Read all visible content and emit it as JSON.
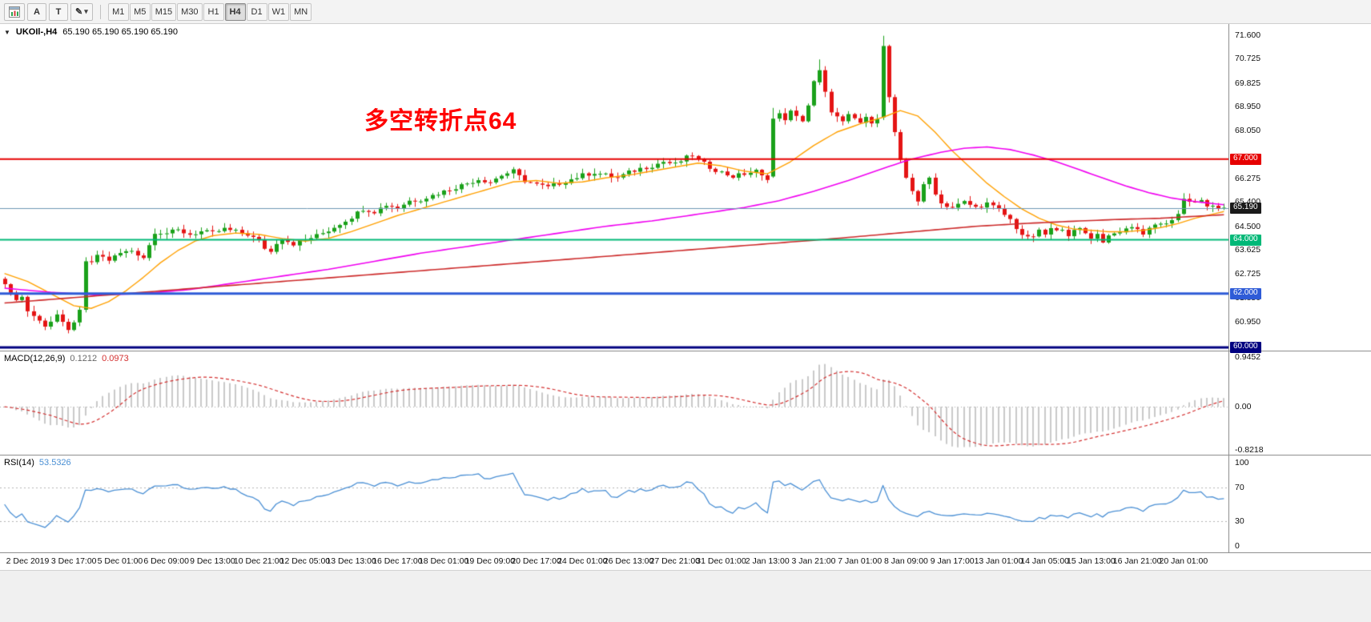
{
  "toolbar": {
    "tools": {
      "cursor_label": "A",
      "text_label": "T",
      "draw_glyph": "✎",
      "chevron_glyph": "▾"
    },
    "timeframes": [
      "M1",
      "M5",
      "M15",
      "M30",
      "H1",
      "H4",
      "D1",
      "W1",
      "MN"
    ],
    "active_timeframe": "H4"
  },
  "chart": {
    "title": "UKOIl-,H4",
    "quote": "65.190 65.190 65.190 65.190",
    "icons": {
      "symbol_dropdown": "▼"
    },
    "annotation": {
      "text": "多空转折点64",
      "color": "#ff0000"
    }
  },
  "indicators": {
    "macd": {
      "label": "MACD(12,26,9)",
      "value_main": "0.1212",
      "value_signal": "0.0973",
      "range": [
        -0.8218,
        0.9452
      ],
      "scale_ticks": [
        {
          "label": "0.9452",
          "v": 0.9452
        },
        {
          "label": "0.00",
          "v": 0
        },
        {
          "label": "-0.8218",
          "v": -0.8218
        }
      ]
    },
    "rsi": {
      "label": "RSI(14)",
      "value": "53.5326",
      "period": 14,
      "levels": [
        70,
        30
      ],
      "scale_ticks": [
        {
          "label": "100",
          "v": 100
        },
        {
          "label": "70",
          "v": 70
        },
        {
          "label": "30",
          "v": 30
        },
        {
          "label": "0",
          "v": 0
        }
      ]
    }
  },
  "chart_data": {
    "type": "candlestick",
    "symbol": "UKOIl-",
    "timeframe": "H4",
    "last_price": 65.19,
    "num_candles": 212,
    "price_range": {
      "min": 60.0,
      "max": 71.6
    },
    "colors": {
      "up": "#1aa11a",
      "down": "#e41414",
      "macd_hist": "#c9c9c9",
      "macd_signal": "#d32f2f",
      "rsi_line": "#4a8fd4",
      "price_line": "#6e99b4",
      "level_dots": "#b5b5b5"
    },
    "y_ticks": [
      "71.600",
      "70.725",
      "69.825",
      "68.950",
      "68.050",
      "66.275",
      "65.400",
      "64.500",
      "63.625",
      "62.725",
      "61.850",
      "60.950"
    ],
    "badges": [
      {
        "label": "67.000",
        "price": 67.0,
        "color": "#e60000"
      },
      {
        "label": "65.190",
        "price": 65.19,
        "color": "#1a1a1a"
      },
      {
        "label": "64.000",
        "price": 64.0,
        "color": "#00b877"
      },
      {
        "label": "62.000",
        "price": 62.0,
        "color": "#2e5bd7"
      },
      {
        "label": "60.000",
        "price": 60.0,
        "color": "#000080"
      }
    ],
    "h_lines": [
      {
        "price": 67.0,
        "color": "#e60000",
        "width": 2
      },
      {
        "price": 64.0,
        "color": "#00b877",
        "width": 2
      },
      {
        "price": 62.0,
        "color": "#2e5bd7",
        "width": 3
      },
      {
        "price": 60.0,
        "color": "#000080",
        "width": 3
      }
    ],
    "x_labels": [
      "2 Dec 2019",
      "3 Dec 17:00",
      "5 Dec 01:00",
      "6 Dec 09:00",
      "9 Dec 13:00",
      "10 Dec 21:00",
      "12 Dec 05:00",
      "13 Dec 13:00",
      "16 Dec 17:00",
      "18 Dec 01:00",
      "19 Dec 09:00",
      "20 Dec 17:00",
      "24 Dec 01:00",
      "26 Dec 13:00",
      "27 Dec 21:00",
      "31 Dec 01:00",
      "2 Jan 13:00",
      "3 Jan 21:00",
      "7 Jan 01:00",
      "8 Jan 09:00",
      "9 Jan 17:00",
      "13 Jan 01:00",
      "14 Jan 05:00",
      "15 Jan 13:00",
      "16 Jan 21:00",
      "20 Jan 01:00"
    ],
    "x_label_start": 4,
    "x_label_step": 8,
    "price_anchors": [
      [
        0,
        62.35
      ],
      [
        1,
        62.1
      ],
      [
        2,
        61.75
      ],
      [
        3,
        61.9
      ],
      [
        4,
        61.35
      ],
      [
        5,
        61.15
      ],
      [
        6,
        61.05
      ],
      [
        7,
        60.8
      ],
      [
        8,
        60.95
      ],
      [
        9,
        61.15
      ],
      [
        10,
        60.9
      ],
      [
        11,
        60.7
      ],
      [
        12,
        60.85
      ],
      [
        13,
        61.35
      ],
      [
        14,
        63.2
      ],
      [
        15,
        63.1
      ],
      [
        16,
        63.45
      ],
      [
        18,
        63.25
      ],
      [
        20,
        63.5
      ],
      [
        22,
        63.6
      ],
      [
        24,
        63.35
      ],
      [
        25,
        63.8
      ],
      [
        26,
        64.3
      ],
      [
        28,
        64.25
      ],
      [
        30,
        64.35
      ],
      [
        32,
        64.2
      ],
      [
        34,
        64.3
      ],
      [
        36,
        64.25
      ],
      [
        38,
        64.4
      ],
      [
        40,
        64.3
      ],
      [
        42,
        64.2
      ],
      [
        44,
        63.95
      ],
      [
        45,
        63.7
      ],
      [
        46,
        63.55
      ],
      [
        47,
        63.9
      ],
      [
        48,
        64.05
      ],
      [
        50,
        63.85
      ],
      [
        52,
        64.0
      ],
      [
        54,
        64.15
      ],
      [
        56,
        64.35
      ],
      [
        58,
        64.6
      ],
      [
        60,
        64.85
      ],
      [
        62,
        65.15
      ],
      [
        64,
        65.05
      ],
      [
        66,
        65.3
      ],
      [
        68,
        65.2
      ],
      [
        70,
        65.45
      ],
      [
        72,
        65.5
      ],
      [
        74,
        65.65
      ],
      [
        76,
        65.8
      ],
      [
        78,
        65.95
      ],
      [
        80,
        66.1
      ],
      [
        82,
        66.25
      ],
      [
        84,
        66.15
      ],
      [
        86,
        66.4
      ],
      [
        88,
        66.55
      ],
      [
        89,
        66.35
      ],
      [
        90,
        66.2
      ],
      [
        92,
        66.05
      ],
      [
        94,
        65.95
      ],
      [
        96,
        66.1
      ],
      [
        98,
        66.25
      ],
      [
        100,
        66.4
      ],
      [
        102,
        66.5
      ],
      [
        104,
        66.4
      ],
      [
        106,
        66.3
      ],
      [
        108,
        66.5
      ],
      [
        110,
        66.65
      ],
      [
        112,
        66.75
      ],
      [
        114,
        66.9
      ],
      [
        116,
        66.8
      ],
      [
        118,
        67.05
      ],
      [
        119,
        67.15
      ],
      [
        120,
        66.95
      ],
      [
        122,
        66.7
      ],
      [
        124,
        66.5
      ],
      [
        126,
        66.35
      ],
      [
        128,
        66.45
      ],
      [
        130,
        66.55
      ],
      [
        131,
        66.35
      ],
      [
        132,
        66.3
      ],
      [
        133,
        68.5
      ],
      [
        134,
        68.65
      ],
      [
        135,
        68.5
      ],
      [
        136,
        68.75
      ],
      [
        137,
        68.55
      ],
      [
        138,
        68.45
      ],
      [
        139,
        69.0
      ],
      [
        140,
        69.85
      ],
      [
        141,
        70.3
      ],
      [
        142,
        69.5
      ],
      [
        143,
        68.8
      ],
      [
        144,
        68.55
      ],
      [
        145,
        68.35
      ],
      [
        146,
        68.6
      ],
      [
        147,
        68.5
      ],
      [
        148,
        68.35
      ],
      [
        149,
        68.5
      ],
      [
        150,
        68.4
      ],
      [
        151,
        68.55
      ],
      [
        152,
        71.2
      ],
      [
        153,
        69.3
      ],
      [
        154,
        68.0
      ],
      [
        155,
        66.9
      ],
      [
        156,
        66.3
      ],
      [
        157,
        65.85
      ],
      [
        158,
        65.45
      ],
      [
        159,
        66.0
      ],
      [
        160,
        66.3
      ],
      [
        161,
        65.75
      ],
      [
        162,
        65.35
      ],
      [
        164,
        65.2
      ],
      [
        166,
        65.4
      ],
      [
        168,
        65.2
      ],
      [
        170,
        65.35
      ],
      [
        172,
        65.1
      ],
      [
        174,
        64.75
      ],
      [
        175,
        64.45
      ],
      [
        176,
        64.2
      ],
      [
        177,
        64.05
      ],
      [
        178,
        64.15
      ],
      [
        179,
        64.3
      ],
      [
        180,
        64.2
      ],
      [
        181,
        64.4
      ],
      [
        182,
        64.3
      ],
      [
        183,
        64.45
      ],
      [
        184,
        64.2
      ],
      [
        185,
        64.3
      ],
      [
        186,
        64.4
      ],
      [
        187,
        64.25
      ],
      [
        188,
        64.1
      ],
      [
        189,
        64.2
      ],
      [
        190,
        63.95
      ],
      [
        191,
        64.15
      ],
      [
        192,
        64.3
      ],
      [
        193,
        64.2
      ],
      [
        194,
        64.4
      ],
      [
        195,
        64.5
      ],
      [
        196,
        64.35
      ],
      [
        197,
        64.25
      ],
      [
        198,
        64.45
      ],
      [
        199,
        64.55
      ],
      [
        200,
        64.65
      ],
      [
        201,
        64.6
      ],
      [
        202,
        64.75
      ],
      [
        203,
        64.9
      ],
      [
        204,
        65.5
      ],
      [
        205,
        65.45
      ],
      [
        206,
        65.35
      ],
      [
        207,
        65.4
      ],
      [
        208,
        65.25
      ],
      [
        209,
        65.3
      ],
      [
        210,
        65.2
      ],
      [
        211,
        65.19
      ]
    ],
    "special_candles": [
      {
        "i": 0,
        "o": 62.55,
        "h": 62.62,
        "l": 62.2,
        "c": 62.35
      },
      {
        "i": 14,
        "o": 61.4,
        "h": 63.35,
        "l": 61.3,
        "c": 63.2
      },
      {
        "i": 133,
        "o": 66.35,
        "h": 68.9,
        "l": 66.3,
        "c": 68.5
      },
      {
        "i": 141,
        "o": 69.85,
        "h": 70.7,
        "l": 69.75,
        "c": 70.3
      },
      {
        "i": 142,
        "o": 70.3,
        "h": 70.45,
        "l": 69.3,
        "c": 69.5
      },
      {
        "i": 152,
        "o": 68.55,
        "h": 71.6,
        "l": 68.45,
        "c": 71.2
      },
      {
        "i": 153,
        "o": 71.2,
        "h": 71.25,
        "l": 69.1,
        "c": 69.3
      },
      {
        "i": 154,
        "o": 69.3,
        "h": 69.4,
        "l": 67.85,
        "c": 68.0
      }
    ],
    "ma_lines": [
      {
        "name": "ma-fast",
        "color": "#ffa000",
        "width": 1.4,
        "anchors": [
          [
            0,
            62.75
          ],
          [
            4,
            62.45
          ],
          [
            8,
            62.0
          ],
          [
            12,
            61.55
          ],
          [
            15,
            61.45
          ],
          [
            18,
            61.7
          ],
          [
            21,
            62.1
          ],
          [
            24,
            62.6
          ],
          [
            27,
            63.15
          ],
          [
            30,
            63.6
          ],
          [
            33,
            63.95
          ],
          [
            36,
            64.15
          ],
          [
            40,
            64.25
          ],
          [
            44,
            64.2
          ],
          [
            48,
            64.05
          ],
          [
            52,
            63.95
          ],
          [
            56,
            64.05
          ],
          [
            60,
            64.3
          ],
          [
            64,
            64.6
          ],
          [
            68,
            64.9
          ],
          [
            72,
            65.15
          ],
          [
            76,
            65.4
          ],
          [
            80,
            65.65
          ],
          [
            84,
            65.9
          ],
          [
            88,
            66.15
          ],
          [
            92,
            66.2
          ],
          [
            96,
            66.1
          ],
          [
            100,
            66.15
          ],
          [
            104,
            66.3
          ],
          [
            108,
            66.4
          ],
          [
            112,
            66.55
          ],
          [
            116,
            66.7
          ],
          [
            120,
            66.85
          ],
          [
            124,
            66.75
          ],
          [
            128,
            66.55
          ],
          [
            132,
            66.45
          ],
          [
            136,
            66.9
          ],
          [
            140,
            67.5
          ],
          [
            144,
            68.0
          ],
          [
            148,
            68.3
          ],
          [
            152,
            68.55
          ],
          [
            155,
            68.8
          ],
          [
            158,
            68.6
          ],
          [
            161,
            68.0
          ],
          [
            164,
            67.3
          ],
          [
            167,
            66.7
          ],
          [
            170,
            66.1
          ],
          [
            173,
            65.6
          ],
          [
            176,
            65.15
          ],
          [
            179,
            64.8
          ],
          [
            182,
            64.55
          ],
          [
            185,
            64.4
          ],
          [
            188,
            64.35
          ],
          [
            191,
            64.3
          ],
          [
            194,
            64.3
          ],
          [
            197,
            64.35
          ],
          [
            200,
            64.45
          ],
          [
            203,
            64.6
          ],
          [
            206,
            64.8
          ],
          [
            209,
            64.95
          ],
          [
            211,
            65.05
          ]
        ]
      },
      {
        "name": "ma-mid",
        "color": "#f000f0",
        "width": 1.6,
        "anchors": [
          [
            0,
            62.2
          ],
          [
            8,
            62.05
          ],
          [
            16,
            61.95
          ],
          [
            24,
            62.0
          ],
          [
            32,
            62.15
          ],
          [
            40,
            62.4
          ],
          [
            48,
            62.65
          ],
          [
            56,
            62.9
          ],
          [
            64,
            63.2
          ],
          [
            72,
            63.5
          ],
          [
            80,
            63.75
          ],
          [
            88,
            64.0
          ],
          [
            96,
            64.25
          ],
          [
            104,
            64.5
          ],
          [
            112,
            64.7
          ],
          [
            120,
            64.95
          ],
          [
            128,
            65.2
          ],
          [
            134,
            65.45
          ],
          [
            140,
            65.8
          ],
          [
            146,
            66.2
          ],
          [
            152,
            66.65
          ],
          [
            157,
            67.0
          ],
          [
            162,
            67.25
          ],
          [
            166,
            67.4
          ],
          [
            170,
            67.45
          ],
          [
            174,
            67.35
          ],
          [
            178,
            67.15
          ],
          [
            182,
            66.9
          ],
          [
            186,
            66.6
          ],
          [
            190,
            66.3
          ],
          [
            194,
            66.0
          ],
          [
            198,
            65.75
          ],
          [
            202,
            65.55
          ],
          [
            206,
            65.42
          ],
          [
            211,
            65.3
          ]
        ]
      },
      {
        "name": "ma-slow",
        "color": "#cc2a2a",
        "width": 1.6,
        "anchors": [
          [
            0,
            61.65
          ],
          [
            12,
            61.85
          ],
          [
            24,
            62.05
          ],
          [
            36,
            62.25
          ],
          [
            48,
            62.45
          ],
          [
            60,
            62.65
          ],
          [
            72,
            62.85
          ],
          [
            84,
            63.05
          ],
          [
            96,
            63.25
          ],
          [
            108,
            63.45
          ],
          [
            120,
            63.65
          ],
          [
            132,
            63.85
          ],
          [
            144,
            64.05
          ],
          [
            152,
            64.2
          ],
          [
            160,
            64.35
          ],
          [
            168,
            64.5
          ],
          [
            176,
            64.6
          ],
          [
            184,
            64.68
          ],
          [
            192,
            64.75
          ],
          [
            200,
            64.8
          ],
          [
            206,
            64.87
          ],
          [
            211,
            64.93
          ]
        ]
      }
    ]
  }
}
